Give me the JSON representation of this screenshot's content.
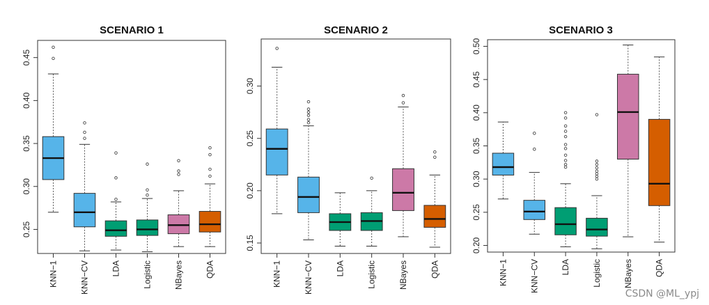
{
  "chart_data": [
    {
      "type": "boxplot",
      "title": "SCENARIO 1",
      "xlabel": "",
      "ylabel": "",
      "ylim": [
        0.222,
        0.47
      ],
      "yticks": [
        0.25,
        0.3,
        0.35,
        0.4,
        0.45
      ],
      "ytick_labels": [
        "0.25",
        "0.30",
        "0.35",
        "0.40",
        "0.45"
      ],
      "categories": [
        "KNN−1",
        "KNN−CV",
        "LDA",
        "Logistic",
        "NBayes",
        "QDA"
      ],
      "colors": [
        "#56B4E9",
        "#56B4E9",
        "#009E73",
        "#009E73",
        "#CC79A7",
        "#D55E00"
      ],
      "boxes": [
        {
          "whisker_low": 0.27,
          "q1": 0.308,
          "median": 0.333,
          "q3": 0.358,
          "whisker_high": 0.431,
          "outliers": [
            0.449,
            0.462
          ]
        },
        {
          "whisker_low": 0.225,
          "q1": 0.253,
          "median": 0.27,
          "q3": 0.292,
          "whisker_high": 0.349,
          "outliers": [
            0.356,
            0.363,
            0.374
          ]
        },
        {
          "whisker_low": 0.226,
          "q1": 0.242,
          "median": 0.249,
          "q3": 0.26,
          "whisker_high": 0.282,
          "outliers": [
            0.285,
            0.31,
            0.339
          ]
        },
        {
          "whisker_low": 0.224,
          "q1": 0.243,
          "median": 0.25,
          "q3": 0.261,
          "whisker_high": 0.286,
          "outliers": [
            0.29,
            0.296,
            0.326
          ]
        },
        {
          "whisker_low": 0.23,
          "q1": 0.245,
          "median": 0.255,
          "q3": 0.267,
          "whisker_high": 0.295,
          "outliers": [
            0.314,
            0.318,
            0.33
          ]
        },
        {
          "whisker_low": 0.23,
          "q1": 0.247,
          "median": 0.256,
          "q3": 0.271,
          "whisker_high": 0.303,
          "outliers": [
            0.312,
            0.32,
            0.337,
            0.345
          ]
        }
      ]
    },
    {
      "type": "boxplot",
      "title": "SCENARIO 2",
      "xlabel": "",
      "ylabel": "",
      "ylim": [
        0.14,
        0.345
      ],
      "yticks": [
        0.15,
        0.2,
        0.25,
        0.3
      ],
      "ytick_labels": [
        "0.15",
        "0.20",
        "0.25",
        "0.30"
      ],
      "categories": [
        "KNN−1",
        "KNN−CV",
        "LDA",
        "Logistic",
        "NBayes",
        "QDA"
      ],
      "colors": [
        "#56B4E9",
        "#56B4E9",
        "#009E73",
        "#009E73",
        "#CC79A7",
        "#D55E00"
      ],
      "boxes": [
        {
          "whisker_low": 0.178,
          "q1": 0.215,
          "median": 0.24,
          "q3": 0.259,
          "whisker_high": 0.318,
          "outliers": [
            0.336
          ]
        },
        {
          "whisker_low": 0.153,
          "q1": 0.179,
          "median": 0.194,
          "q3": 0.213,
          "whisker_high": 0.262,
          "outliers": [
            0.265,
            0.268,
            0.272,
            0.275,
            0.278,
            0.285
          ]
        },
        {
          "whisker_low": 0.147,
          "q1": 0.162,
          "median": 0.17,
          "q3": 0.178,
          "whisker_high": 0.198,
          "outliers": []
        },
        {
          "whisker_low": 0.147,
          "q1": 0.162,
          "median": 0.171,
          "q3": 0.179,
          "whisker_high": 0.2,
          "outliers": [
            0.212
          ]
        },
        {
          "whisker_low": 0.156,
          "q1": 0.181,
          "median": 0.198,
          "q3": 0.221,
          "whisker_high": 0.28,
          "outliers": [
            0.284,
            0.291
          ]
        },
        {
          "whisker_low": 0.146,
          "q1": 0.165,
          "median": 0.173,
          "q3": 0.186,
          "whisker_high": 0.215,
          "outliers": [
            0.232,
            0.237
          ]
        }
      ]
    },
    {
      "type": "boxplot",
      "title": "SCENARIO 3",
      "xlabel": "",
      "ylabel": "",
      "ylim": [
        0.19,
        0.51
      ],
      "yticks": [
        0.2,
        0.25,
        0.3,
        0.35,
        0.4,
        0.45,
        0.5
      ],
      "ytick_labels": [
        "0.20",
        "0.25",
        "0.30",
        "0.35",
        "0.40",
        "0.45",
        "0.50"
      ],
      "categories": [
        "KNN−1",
        "KNN−CV",
        "LDA",
        "Logistic",
        "NBayes",
        "QDA"
      ],
      "colors": [
        "#56B4E9",
        "#56B4E9",
        "#009E73",
        "#009E73",
        "#CC79A7",
        "#D55E00"
      ],
      "boxes": [
        {
          "whisker_low": 0.27,
          "q1": 0.306,
          "median": 0.318,
          "q3": 0.339,
          "whisker_high": 0.386,
          "outliers": []
        },
        {
          "whisker_low": 0.217,
          "q1": 0.239,
          "median": 0.251,
          "q3": 0.268,
          "whisker_high": 0.31,
          "outliers": [
            0.345,
            0.369
          ]
        },
        {
          "whisker_low": 0.198,
          "q1": 0.216,
          "median": 0.232,
          "q3": 0.257,
          "whisker_high": 0.293,
          "outliers": [
            0.318,
            0.322,
            0.328,
            0.336,
            0.346,
            0.352,
            0.364,
            0.372,
            0.38,
            0.392,
            0.4
          ]
        },
        {
          "whisker_low": 0.195,
          "q1": 0.214,
          "median": 0.224,
          "q3": 0.241,
          "whisker_high": 0.275,
          "outliers": [
            0.3,
            0.304,
            0.308,
            0.312,
            0.317,
            0.322,
            0.327,
            0.397
          ]
        },
        {
          "whisker_low": 0.213,
          "q1": 0.33,
          "median": 0.401,
          "q3": 0.458,
          "whisker_high": 0.502,
          "outliers": []
        },
        {
          "whisker_low": 0.205,
          "q1": 0.26,
          "median": 0.293,
          "q3": 0.39,
          "whisker_high": 0.484,
          "outliers": []
        }
      ]
    }
  ],
  "watermark": "CSDN @ML_ypj"
}
